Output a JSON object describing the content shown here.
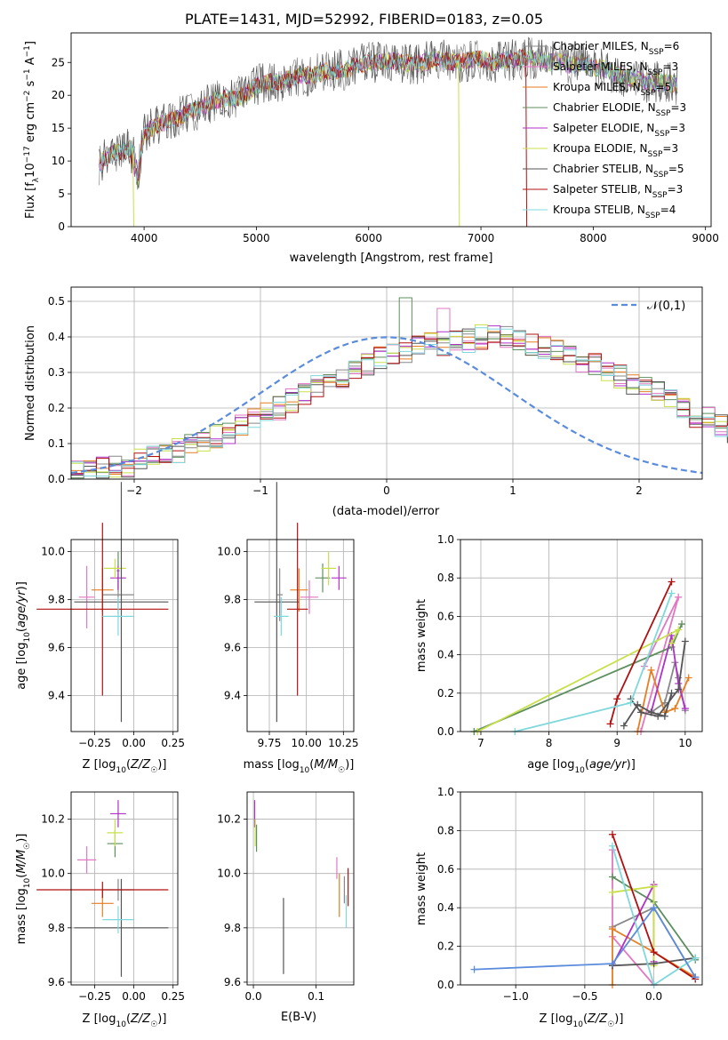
{
  "title": "PLATE=1431, MJD=52992, FIBERID=0183, z=0.05",
  "colors": {
    "Chabrier MILES": "#888888",
    "Salpeter MILES": "#e377c2",
    "Kroupa MILES": "#e67e22",
    "Chabrier ELODIE": "#5e8f5e",
    "Salpeter ELODIE": "#b030c8",
    "Kroupa ELODIE": "#c8e04a",
    "Chabrier STELIB": "#555555",
    "Salpeter STELIB": "#b01010",
    "Kroupa STELIB": "#7fd8dc",
    "gauss": "#5b8cdc"
  },
  "chart_data": [
    {
      "type": "line",
      "xlabel": "wavelength [Angstrom, rest frame]",
      "ylabel": "Flux [f_λ10^-17 erg cm^-2 s^-1 A^-1]",
      "xlim": [
        3350,
        9050
      ],
      "ylim": [
        0,
        29.5
      ],
      "xticks": [
        4000,
        5000,
        6000,
        7000,
        8000,
        9000
      ],
      "yticks": [
        0,
        5,
        10,
        15,
        20,
        25
      ],
      "legend": [
        {
          "name": "Chabrier MILES",
          "label": "Chabrier MILES, N_SSP=6"
        },
        {
          "name": "Salpeter MILES",
          "label": "Salpeter MILES, N_SSP=3"
        },
        {
          "name": "Kroupa MILES",
          "label": "Kroupa MILES, N_SSP=5"
        },
        {
          "name": "Chabrier ELODIE",
          "label": "Chabrier ELODIE, N_SSP=3"
        },
        {
          "name": "Salpeter ELODIE",
          "label": "Salpeter ELODIE, N_SSP=3"
        },
        {
          "name": "Kroupa ELODIE",
          "label": "Kroupa ELODIE, N_SSP=3"
        },
        {
          "name": "Chabrier STELIB",
          "label": "Chabrier STELIB, N_SSP=5"
        },
        {
          "name": "Salpeter STELIB",
          "label": "Salpeter STELIB, N_SSP=3"
        },
        {
          "name": "Kroupa STELIB",
          "label": "Kroupa STELIB, N_SSP=4"
        }
      ],
      "legend_position": "upper-right",
      "spectrum_x": [
        3600,
        3700,
        3800,
        3900,
        3950,
        4000,
        4100,
        4200,
        4300,
        4400,
        4500,
        4600,
        4700,
        4800,
        4900,
        5000,
        5100,
        5200,
        5300,
        5400,
        5500,
        5600,
        5700,
        5800,
        5900,
        6000,
        6100,
        6200,
        6300,
        6400,
        6500,
        6600,
        6700,
        6800,
        6900,
        7000,
        7100,
        7200,
        7300,
        7400,
        7500,
        7600,
        7700,
        7800,
        7900,
        8000,
        8100,
        8200,
        8300,
        8400,
        8500,
        8600,
        8700,
        8750
      ],
      "spectrum_y": [
        9.5,
        11,
        11.5,
        12,
        9,
        14,
        15.5,
        16,
        16.5,
        17.5,
        18,
        19,
        19.5,
        19.5,
        20,
        21.5,
        22,
        22,
        22.5,
        23,
        23,
        23.5,
        23.8,
        24,
        24.5,
        25,
        25,
        25.3,
        25,
        24.8,
        25,
        25.5,
        25.2,
        25,
        25.3,
        25.5,
        25,
        25.3,
        25.5,
        25.7,
        25.5,
        25,
        25.3,
        24.5,
        25,
        24.2,
        24,
        23.2,
        22.8,
        22.3,
        22,
        22,
        21.8,
        21.5
      ],
      "dropouts": [
        {
          "series": "Kroupa ELODIE",
          "x": 3900
        },
        {
          "series": "Kroupa ELODIE",
          "x": 6800
        },
        {
          "series": "Salpeter STELIB",
          "x": 7400
        }
      ]
    },
    {
      "type": "histogram",
      "xlabel": "(data-model)/error",
      "ylabel": "Normed distribution",
      "xlim": [
        -2.5,
        2.5
      ],
      "ylim": [
        0,
        0.54
      ],
      "xticks": [
        -2,
        -1,
        0,
        1,
        2
      ],
      "yticks": [
        0.0,
        0.1,
        0.2,
        0.3,
        0.4,
        0.5
      ],
      "legend": [
        {
          "label": "𝒩(0,1)"
        }
      ],
      "legend_position": "upper-right",
      "bin_width": 0.1,
      "bin_start": -2.5,
      "hist_values": [
        0.02,
        0.02,
        0.03,
        0.03,
        0.04,
        0.05,
        0.07,
        0.08,
        0.08,
        0.1,
        0.11,
        0.12,
        0.13,
        0.15,
        0.17,
        0.18,
        0.2,
        0.22,
        0.24,
        0.26,
        0.27,
        0.29,
        0.3,
        0.32,
        0.34,
        0.35,
        0.36,
        0.37,
        0.38,
        0.38,
        0.39,
        0.39,
        0.4,
        0.41,
        0.4,
        0.39,
        0.38,
        0.37,
        0.36,
        0.35,
        0.33,
        0.32,
        0.3,
        0.29,
        0.27,
        0.26,
        0.24,
        0.22,
        0.2,
        0.18,
        0.17,
        0.15,
        0.13,
        0.12,
        0.11,
        0.1,
        0.08,
        0.08,
        0.07,
        0.05,
        0.04,
        0.03,
        0.03,
        0.02,
        0.02
      ]
    },
    {
      "type": "scatter",
      "xlabel": "Z [log10(Z/Z☉)]",
      "ylabel": "age  [log10(age/yr)]",
      "xlim": [
        -0.4,
        0.28
      ],
      "ylim": [
        9.25,
        10.05
      ],
      "xticks": [
        -0.25,
        0.0,
        0.25
      ],
      "yticks": [
        9.4,
        9.6,
        9.8,
        10.0
      ],
      "points": [
        {
          "series": "Chabrier MILES",
          "x": -0.1,
          "y": 9.82,
          "xerr": 0.1,
          "yerr": 0.08
        },
        {
          "series": "Salpeter MILES",
          "x": -0.3,
          "y": 9.81,
          "xerr": 0.05,
          "yerr": 0.13
        },
        {
          "series": "Kroupa MILES",
          "x": -0.2,
          "y": 9.84,
          "xerr": 0.07,
          "yerr": 0.09
        },
        {
          "series": "Chabrier ELODIE",
          "x": -0.1,
          "y": 9.92,
          "xerr": 0.01,
          "yerr": 0.08
        },
        {
          "series": "Salpeter ELODIE",
          "x": -0.1,
          "y": 9.89,
          "xerr": 0.05,
          "yerr": 0.05
        },
        {
          "series": "Kroupa ELODIE",
          "x": -0.12,
          "y": 9.93,
          "xerr": 0.07,
          "yerr": 0.04
        },
        {
          "series": "Chabrier STELIB",
          "x": -0.08,
          "y": 9.79,
          "xerr": 0.3,
          "yerr": 0.5
        },
        {
          "series": "Salpeter STELIB",
          "x": -0.2,
          "y": 9.76,
          "xerr": 0.42,
          "yerr": 0.36
        },
        {
          "series": "Kroupa STELIB",
          "x": -0.1,
          "y": 9.73,
          "xerr": 0.1,
          "yerr": 0.08
        }
      ]
    },
    {
      "type": "scatter",
      "xlabel": "mass [log10(M/M☉)]",
      "ylabel": "",
      "xlim": [
        9.6,
        10.32
      ],
      "ylim": [
        9.25,
        10.05
      ],
      "xticks": [
        9.75,
        10.0,
        10.25
      ],
      "yticks": [
        9.4,
        9.6,
        9.8,
        10.0
      ],
      "points": [
        {
          "series": "Chabrier MILES",
          "x": 9.82,
          "y": 9.82,
          "xerr": 0.02,
          "yerr": 0.11
        },
        {
          "series": "Salpeter MILES",
          "x": 10.02,
          "y": 9.81,
          "xerr": 0.06,
          "yerr": 0.07
        },
        {
          "series": "Kroupa MILES",
          "x": 9.95,
          "y": 9.84,
          "xerr": 0.06,
          "yerr": 0.09
        },
        {
          "series": "Chabrier ELODIE",
          "x": 10.11,
          "y": 9.89,
          "xerr": 0.05,
          "yerr": 0.06
        },
        {
          "series": "Salpeter ELODIE",
          "x": 10.22,
          "y": 9.89,
          "xerr": 0.05,
          "yerr": 0.05
        },
        {
          "series": "Kroupa ELODIE",
          "x": 10.15,
          "y": 9.93,
          "xerr": 0.05,
          "yerr": 0.07
        },
        {
          "series": "Chabrier STELIB",
          "x": 9.8,
          "y": 9.79,
          "xerr": 0.15,
          "yerr": 0.5
        },
        {
          "series": "Salpeter STELIB",
          "x": 9.94,
          "y": 9.76,
          "xerr": 0.07,
          "yerr": 0.36
        },
        {
          "series": "Kroupa STELIB",
          "x": 9.83,
          "y": 9.73,
          "xerr": 0.05,
          "yerr": 0.08
        }
      ]
    },
    {
      "type": "line",
      "xlabel": "age  [log10(age/yr)]",
      "ylabel": "mass weight",
      "xlim": [
        6.7,
        10.25
      ],
      "ylim": [
        0,
        1.0
      ],
      "xticks": [
        7,
        8,
        9,
        10
      ],
      "yticks": [
        0.0,
        0.2,
        0.4,
        0.6,
        0.8,
        1.0
      ],
      "series": [
        {
          "name": "Chabrier MILES",
          "x": [
            9.5,
            9.7,
            9.85,
            9.9,
            10.0
          ],
          "y": [
            0.1,
            0.15,
            0.36,
            0.28,
            0.11
          ]
        },
        {
          "name": "Salpeter MILES",
          "x": [
            9.4,
            9.9,
            9.35
          ],
          "y": [
            0.34,
            0.7,
            0.0
          ]
        },
        {
          "name": "Kroupa MILES",
          "x": [
            9.3,
            9.5,
            9.7,
            9.85,
            10.05
          ],
          "y": [
            0.0,
            0.32,
            0.1,
            0.12,
            0.28
          ]
        },
        {
          "name": "Chabrier ELODIE",
          "x": [
            6.9,
            9.8,
            9.95
          ],
          "y": [
            0.0,
            0.44,
            0.56
          ]
        },
        {
          "name": "Salpeter ELODIE",
          "x": [
            9.5,
            9.8,
            9.9,
            10.0
          ],
          "y": [
            0.1,
            0.5,
            0.25,
            0.12
          ]
        },
        {
          "name": "Kroupa ELODIE",
          "x": [
            6.95,
            9.9,
            9.8
          ],
          "y": [
            0.0,
            0.53,
            0.46
          ]
        },
        {
          "name": "Chabrier STELIB",
          "x": [
            9.2,
            9.35,
            9.6,
            9.9,
            10.0
          ],
          "y": [
            0.17,
            0.1,
            0.08,
            0.22,
            0.47
          ]
        },
        {
          "name": "Salpeter STELIB",
          "x": [
            8.9,
            9.0,
            9.8
          ],
          "y": [
            0.04,
            0.17,
            0.78
          ]
        },
        {
          "name": "Kroupa STELIB",
          "x": [
            7.5,
            9.2,
            9.8
          ],
          "y": [
            0.0,
            0.15,
            0.72
          ]
        },
        {
          "name": "Chabrier STELIB",
          "x": [
            9.1,
            9.3,
            9.5,
            9.7,
            9.8
          ],
          "y": [
            0.03,
            0.14,
            0.1,
            0.08,
            0.2
          ]
        }
      ]
    },
    {
      "type": "scatter",
      "xlabel": "Z [log10(Z/Z☉)]",
      "ylabel": "mass [log10(M/M☉)]",
      "xlim": [
        -0.4,
        0.28
      ],
      "ylim": [
        9.59,
        10.3
      ],
      "xticks": [
        -0.25,
        0.0,
        0.25
      ],
      "yticks": [
        9.6,
        9.8,
        10.0,
        10.2
      ],
      "points": [
        {
          "series": "Chabrier MILES",
          "x": -0.1,
          "y": 9.94,
          "xerr": 0.1,
          "yerr": 0.04
        },
        {
          "series": "Salpeter MILES",
          "x": -0.3,
          "y": 10.05,
          "xerr": 0.06,
          "yerr": 0.05
        },
        {
          "series": "Kroupa MILES",
          "x": -0.2,
          "y": 9.89,
          "xerr": 0.07,
          "yerr": 0.05
        },
        {
          "series": "Chabrier ELODIE",
          "x": -0.12,
          "y": 10.11,
          "xerr": 0.05,
          "yerr": 0.05
        },
        {
          "series": "Salpeter ELODIE",
          "x": -0.1,
          "y": 10.22,
          "xerr": 0.05,
          "yerr": 0.05
        },
        {
          "series": "Kroupa ELODIE",
          "x": -0.12,
          "y": 10.15,
          "xerr": 0.05,
          "yerr": 0.05
        },
        {
          "series": "Chabrier STELIB",
          "x": -0.08,
          "y": 9.8,
          "xerr": 0.3,
          "yerr": 0.18
        },
        {
          "series": "Salpeter STELIB",
          "x": -0.2,
          "y": 9.94,
          "xerr": 0.42,
          "yerr": 0.03
        },
        {
          "series": "Kroupa STELIB",
          "x": -0.1,
          "y": 9.83,
          "xerr": 0.1,
          "yerr": 0.05
        }
      ]
    },
    {
      "type": "scatter",
      "xlabel": "E(B-V)",
      "ylabel": "",
      "xlim": [
        -0.01,
        0.16
      ],
      "ylim": [
        9.59,
        10.3
      ],
      "xticks": [
        0.0,
        0.1
      ],
      "yticks": [
        9.6,
        9.8,
        10.0,
        10.2
      ],
      "points": [
        {
          "series": "Chabrier MILES",
          "x": 0.145,
          "y": 9.94,
          "xerr": 0,
          "yerr": 0.05
        },
        {
          "series": "Salpeter MILES",
          "x": 0.133,
          "y": 10.02,
          "xerr": 0,
          "yerr": 0.04
        },
        {
          "series": "Kroupa MILES",
          "x": 0.137,
          "y": 9.92,
          "xerr": 0,
          "yerr": 0.08
        },
        {
          "series": "Chabrier ELODIE",
          "x": 0.005,
          "y": 10.13,
          "xerr": 0,
          "yerr": 0.05
        },
        {
          "series": "Salpeter ELODIE",
          "x": 0.002,
          "y": 10.22,
          "xerr": 0,
          "yerr": 0.05
        },
        {
          "series": "Kroupa ELODIE",
          "x": 0.003,
          "y": 10.15,
          "xerr": 0,
          "yerr": 0.05
        },
        {
          "series": "Chabrier STELIB",
          "x": 0.048,
          "y": 9.77,
          "xerr": 0,
          "yerr": 0.14
        },
        {
          "series": "Salpeter STELIB",
          "x": 0.151,
          "y": 9.95,
          "xerr": 0,
          "yerr": 0.07
        },
        {
          "series": "Kroupa STELIB",
          "x": 0.148,
          "y": 9.86,
          "xerr": 0,
          "yerr": 0.06
        }
      ]
    },
    {
      "type": "line",
      "xlabel": "Z [log10(Z/Z☉)]",
      "ylabel": "mass weight",
      "xlim": [
        -1.4,
        0.35
      ],
      "ylim": [
        0,
        1.0
      ],
      "xticks": [
        -1.0,
        -0.5,
        0.0
      ],
      "yticks": [
        0.0,
        0.2,
        0.4,
        0.6,
        0.8,
        1.0
      ],
      "series": [
        {
          "name": "Chabrier MILES",
          "x": [
            -0.3,
            0.0,
            0.3
          ],
          "y": [
            0.3,
            0.4,
            0.04
          ]
        },
        {
          "name": "Salpeter MILES",
          "x": [
            -0.3,
            -0.3,
            0.0
          ],
          "y": [
            0.7,
            0.25,
            0.0
          ]
        },
        {
          "name": "Kroupa MILES",
          "x": [
            -0.3,
            -0.3,
            0.0,
            0.3
          ],
          "y": [
            0.0,
            0.29,
            0.17,
            0.04
          ]
        },
        {
          "name": "Chabrier ELODIE",
          "x": [
            -0.3,
            0.0,
            0.3
          ],
          "y": [
            0.56,
            0.43,
            0.13
          ]
        },
        {
          "name": "Salpeter ELODIE",
          "x": [
            -0.3,
            0.0,
            0.0
          ],
          "y": [
            0.1,
            0.52,
            0.12
          ]
        },
        {
          "name": "Kroupa ELODIE",
          "x": [
            -0.3,
            0.0,
            0.0
          ],
          "y": [
            0.48,
            0.51,
            0.1
          ]
        },
        {
          "name": "Chabrier STELIB",
          "x": [
            -0.3,
            0.0,
            0.3
          ],
          "y": [
            0.1,
            0.11,
            0.14
          ]
        },
        {
          "name": "Salpeter STELIB",
          "x": [
            -0.3,
            0.0,
            0.3
          ],
          "y": [
            0.78,
            0.17,
            0.03
          ]
        },
        {
          "name": "Kroupa STELIB",
          "x": [
            -0.3,
            0.0,
            0.3
          ],
          "y": [
            0.72,
            0.0,
            0.14
          ]
        },
        {
          "name": "gauss",
          "x": [
            -1.3,
            -0.3,
            0.0,
            0.3
          ],
          "y": [
            0.08,
            0.11,
            0.4,
            0.04
          ]
        }
      ]
    }
  ]
}
